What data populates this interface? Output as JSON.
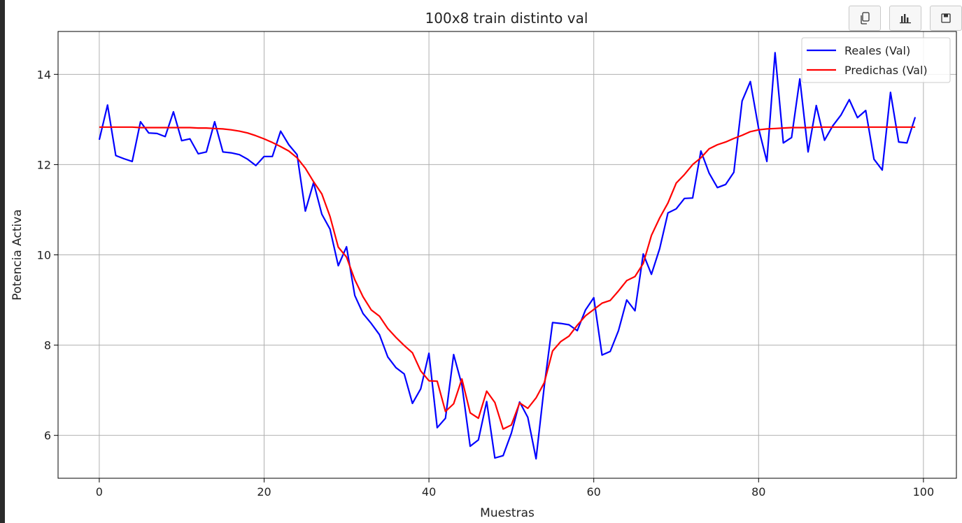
{
  "toolbar": {
    "buttons": [
      {
        "name": "copy",
        "icon": "copy-icon"
      },
      {
        "name": "chart",
        "icon": "bar-chart-icon"
      },
      {
        "name": "save",
        "icon": "save-icon"
      }
    ]
  },
  "chart_data": {
    "type": "line",
    "title": "100x8 train distinto val",
    "xlabel": "Muestras",
    "ylabel": "Potencia Activa",
    "xlim": [
      -5,
      104
    ],
    "ylim": [
      5.05,
      14.95
    ],
    "xticks": [
      0,
      20,
      40,
      60,
      80,
      100
    ],
    "yticks": [
      6,
      8,
      10,
      12,
      14
    ],
    "grid": true,
    "legend_position": "top-right",
    "series": [
      {
        "name": "Reales (Val)",
        "color": "#0000ff",
        "y": [
          12.55,
          13.32,
          12.2,
          12.13,
          12.07,
          12.95,
          12.7,
          12.69,
          12.62,
          13.17,
          12.53,
          12.57,
          12.24,
          12.28,
          12.95,
          12.28,
          12.26,
          12.22,
          12.12,
          11.98,
          12.18,
          12.18,
          12.74,
          12.44,
          12.22,
          10.97,
          11.6,
          10.9,
          10.57,
          9.76,
          10.18,
          9.1,
          8.7,
          8.48,
          8.23,
          7.74,
          7.5,
          7.36,
          6.71,
          7.03,
          7.82,
          6.17,
          6.38,
          7.79,
          7.12,
          5.76,
          5.9,
          6.75,
          5.5,
          5.55,
          6.05,
          6.74,
          6.4,
          5.48,
          7.1,
          8.5,
          8.48,
          8.45,
          8.32,
          8.78,
          9.05,
          7.78,
          7.86,
          8.32,
          9.0,
          8.76,
          10.02,
          9.57,
          10.14,
          10.93,
          11.02,
          11.25,
          11.26,
          12.3,
          11.81,
          11.49,
          11.56,
          11.83,
          13.41,
          13.84,
          12.8,
          12.07,
          14.48,
          12.48,
          12.6,
          13.9,
          12.28,
          13.31,
          12.54,
          12.86,
          13.1,
          13.44,
          13.04,
          13.2,
          12.12,
          11.88,
          13.6,
          12.5,
          12.48,
          13.05
        ]
      },
      {
        "name": "Predichas (Val)",
        "color": "#ff0000",
        "y": [
          12.83,
          12.83,
          12.83,
          12.83,
          12.83,
          12.82,
          12.82,
          12.82,
          12.82,
          12.82,
          12.82,
          12.82,
          12.81,
          12.81,
          12.8,
          12.79,
          12.77,
          12.74,
          12.7,
          12.64,
          12.57,
          12.49,
          12.4,
          12.3,
          12.15,
          11.92,
          11.62,
          11.35,
          10.85,
          10.17,
          9.95,
          9.45,
          9.07,
          8.78,
          8.64,
          8.37,
          8.17,
          7.99,
          7.83,
          7.43,
          7.21,
          7.2,
          6.53,
          6.7,
          7.25,
          6.5,
          6.38,
          6.98,
          6.73,
          6.14,
          6.23,
          6.72,
          6.6,
          6.83,
          7.17,
          7.87,
          8.08,
          8.2,
          8.44,
          8.65,
          8.79,
          8.93,
          8.99,
          9.2,
          9.43,
          9.52,
          9.81,
          10.43,
          10.82,
          11.15,
          11.59,
          11.78,
          12.0,
          12.15,
          12.35,
          12.44,
          12.5,
          12.58,
          12.65,
          12.73,
          12.77,
          12.79,
          12.8,
          12.81,
          12.82,
          12.82,
          12.82,
          12.83,
          12.83,
          12.83,
          12.83,
          12.83,
          12.83,
          12.83,
          12.83,
          12.83,
          12.83,
          12.83,
          12.83,
          12.83
        ]
      }
    ]
  }
}
